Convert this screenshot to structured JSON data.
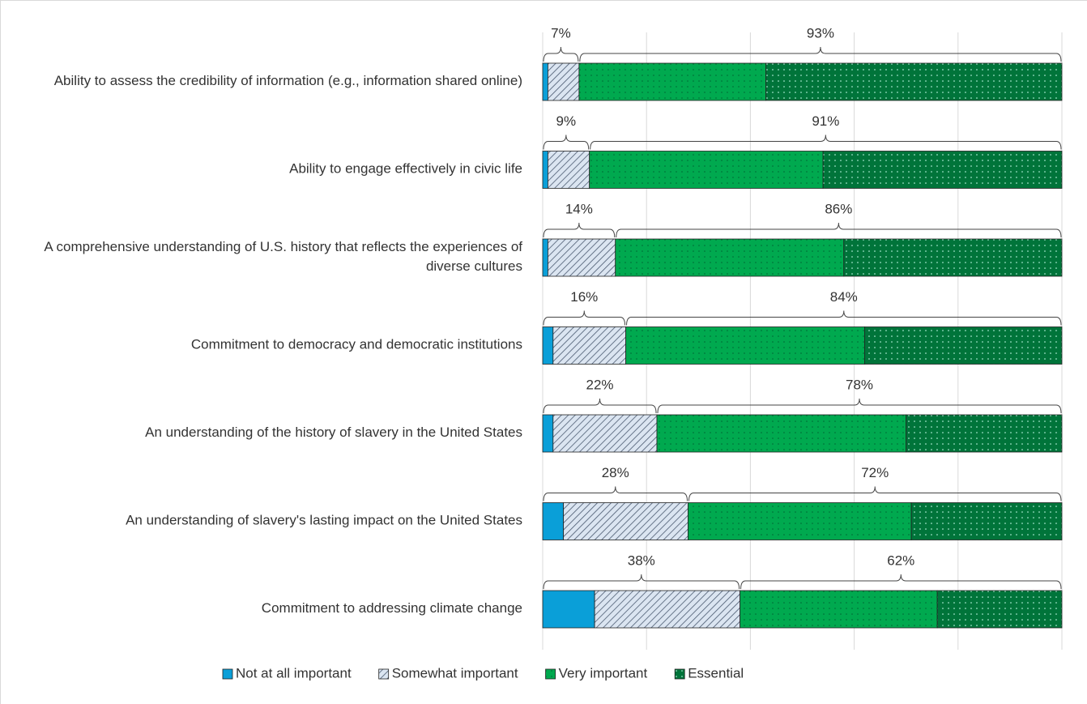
{
  "chart_data": {
    "type": "stacked-barh",
    "categories": [
      "Ability to assess the credibility of information (e.g., information shared online)",
      "Ability to engage effectively in civic life",
      "A comprehensive understanding of U.S. history that reflects the experiences of diverse cultures",
      "Commitment to democracy and democratic institutions",
      "An understanding of the history of slavery in the United States",
      "An understanding of slavery's lasting impact on the United States",
      "Commitment to addressing climate change"
    ],
    "series": [
      {
        "name": "Not at all important",
        "color": "#0a9fd8",
        "pattern": "none",
        "values": [
          1,
          1,
          1,
          2,
          2,
          4,
          10
        ]
      },
      {
        "name": "Somewhat important",
        "color": "#dbe5f1",
        "pattern": "hatch",
        "values": [
          6,
          8,
          13,
          14,
          20,
          24,
          28
        ]
      },
      {
        "name": "Very important",
        "color": "#00a94f",
        "pattern": "dots",
        "values": [
          36,
          45,
          44,
          46,
          48,
          43,
          38
        ]
      },
      {
        "name": "Essential",
        "color": "#00743a",
        "pattern": "dots-light",
        "values": [
          57,
          46,
          42,
          38,
          30,
          29,
          24
        ]
      }
    ],
    "brackets": [
      {
        "values": [
          7,
          9,
          14,
          16,
          22,
          28,
          38
        ],
        "value_labels": [
          "7%",
          "9%",
          "14%",
          "16%",
          "22%",
          "28%",
          "38%"
        ]
      },
      {
        "values": [
          93,
          91,
          86,
          84,
          78,
          72,
          62
        ],
        "value_labels": [
          "93%",
          "91%",
          "86%",
          "84%",
          "78%",
          "72%",
          "62%"
        ]
      }
    ],
    "xlim": [
      0,
      100
    ],
    "xticks": [
      0,
      20,
      40,
      60,
      80,
      100
    ],
    "grid": true,
    "legend": "bottom"
  }
}
